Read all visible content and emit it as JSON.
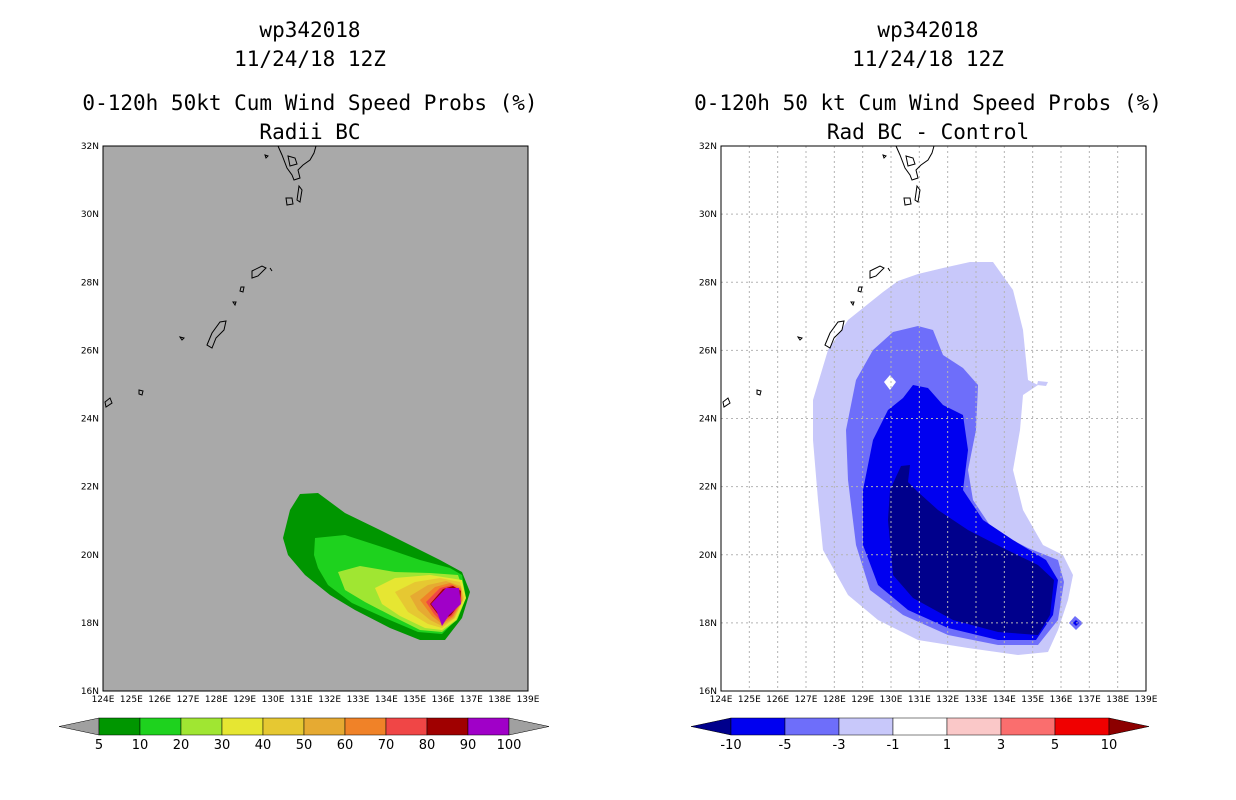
{
  "left_panel": {
    "storm_id": "wp342018",
    "datetime": "11/24/18 12Z",
    "title": "0-120h 50kt Cum Wind Speed Probs (%)",
    "subtitle": "Radii BC",
    "lat_labels": [
      "32N",
      "30N",
      "28N",
      "26N",
      "24N",
      "22N",
      "20N",
      "18N",
      "16N"
    ],
    "lon_labels": [
      "124E",
      "125E",
      "126E",
      "127E",
      "128E",
      "129E",
      "130E",
      "131E",
      "132E",
      "133E",
      "134E",
      "135E",
      "136E",
      "137E",
      "138E",
      "139E"
    ],
    "colorbar": {
      "labels": [
        "5",
        "10",
        "20",
        "30",
        "40",
        "50",
        "60",
        "70",
        "80",
        "90",
        "100"
      ],
      "colors": [
        "#009600",
        "#1ed21e",
        "#a0e632",
        "#e6e632",
        "#e6c832",
        "#e6aa32",
        "#f08228",
        "#f04646",
        "#a00000",
        "#a000c8"
      ],
      "arrow_color": "#a0a0a0"
    },
    "background_color": "#a9a9a9"
  },
  "right_panel": {
    "storm_id": "wp342018",
    "datetime": "11/24/18 12Z",
    "title": "0-120h 50 kt Cum Wind Speed Probs (%)",
    "subtitle": "Rad BC - Control",
    "lat_labels": [
      "32N",
      "30N",
      "28N",
      "26N",
      "24N",
      "22N",
      "20N",
      "18N",
      "16N"
    ],
    "lon_labels": [
      "124E",
      "125E",
      "126E",
      "127E",
      "128E",
      "129E",
      "130E",
      "131E",
      "132E",
      "133E",
      "134E",
      "135E",
      "136E",
      "137E",
      "138E",
      "139E"
    ],
    "colorbar": {
      "labels": [
        "-10",
        "-5",
        "-3",
        "-1",
        "1",
        "3",
        "5",
        "10"
      ],
      "colors": [
        "#0000f0",
        "#6e6efa",
        "#c8c8fa",
        "#ffffff",
        "#fac8c8",
        "#fa6e6e",
        "#f00000"
      ],
      "low_arrow_color": "#00008c",
      "high_arrow_color": "#8c0000"
    },
    "background_color": "#ffffff"
  }
}
